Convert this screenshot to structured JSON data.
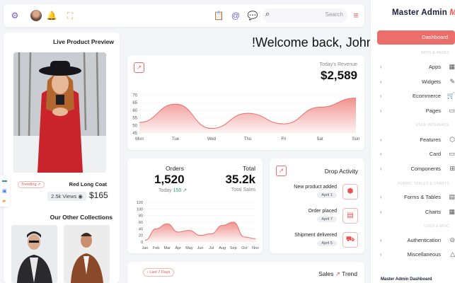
{
  "header": {
    "search_placeholder": "Search",
    "icons": [
      "settings-icon",
      "avatar",
      "bell-icon",
      "fullscreen-icon",
      "clipboard-icon",
      "at-icon",
      "chat-icon",
      "search-icon",
      "menu-icon"
    ]
  },
  "welcome": "!Welcome back, John",
  "product": {
    "title": "Live Product Preview",
    "badge": "Trending",
    "name": "Red Long Coat",
    "views": "2.5k Views",
    "price": "$165",
    "collections_title": "Our Other Collections"
  },
  "revenue": {
    "label": "Today's Revenue",
    "value": "$2,589"
  },
  "orders": {
    "label": "Orders",
    "value": "1,520",
    "today_label": "Today",
    "today_value": "150",
    "total_label": "Total",
    "total_value": "35.2k",
    "total_sub": "Total Sales"
  },
  "drop": {
    "title": "Drop Activity",
    "items": [
      {
        "label": "New product added",
        "date": "April 1"
      },
      {
        "label": "Order placed",
        "date": "April 7"
      },
      {
        "label": "Shipment delivered",
        "date": "April 5"
      }
    ]
  },
  "sales": {
    "title": "Sales",
    "trend": "Trend",
    "filter": "Last 7 Days"
  },
  "sidebar": {
    "brand": "Master Admin",
    "dashboard": "Dashboard",
    "sections": [
      "APPS & PAGES",
      "USER INTERFACE",
      "FORMS, TABLES & CHARTS",
      "LOGS & MISC"
    ],
    "items": [
      "Apps",
      "Widgets",
      "Ecommerce",
      "Pages",
      "Features",
      "Card",
      "Components",
      "Forms & Tables",
      "Charts",
      "Authentication",
      "Miscellaneous"
    ],
    "footer": "Master Admin Dashboard"
  },
  "chart_data": [
    {
      "type": "area",
      "x": [
        "Mon",
        "Tue",
        "Wed",
        "Thu",
        "Fri",
        "Sat",
        "Sun"
      ],
      "yticks": [
        45,
        50,
        55,
        60,
        65,
        70
      ],
      "ylim": [
        45,
        72
      ],
      "series": [
        {
          "values": [
            52,
            64,
            48,
            58,
            51,
            62,
            68
          ]
        }
      ]
    },
    {
      "type": "area",
      "x": [
        "Jan",
        "Feb",
        "Mar",
        "Apr",
        "May",
        "Jun",
        "Jul",
        "Aug",
        "Sep",
        "Oct",
        "Nov"
      ],
      "yticks": [
        0,
        20,
        40,
        60,
        80,
        100,
        120
      ],
      "ylim": [
        0,
        120
      ],
      "series": [
        {
          "values": [
            5,
            40,
            55,
            30,
            35,
            20,
            25,
            50,
            60,
            15,
            10
          ]
        }
      ]
    }
  ],
  "colors": {
    "accent": "#ec6e6a",
    "brand_dark": "#1b1f3b"
  }
}
